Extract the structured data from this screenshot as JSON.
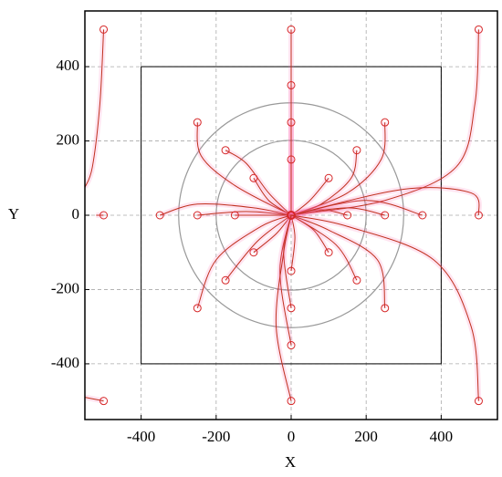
{
  "chart_data": {
    "type": "line",
    "x_label": "X",
    "y_label": "Y",
    "xlim": [
      -550,
      550
    ],
    "ylim": [
      -550,
      550
    ],
    "xticks": [
      -400,
      -200,
      0,
      200,
      400
    ],
    "yticks": [
      -400,
      -200,
      0,
      200,
      400
    ],
    "grid": true,
    "color": "#c0301e",
    "marker_color": "#d62728",
    "square": [
      -400,
      400
    ],
    "circle_radii": [
      200,
      300
    ],
    "series": [
      {
        "x": [
          0,
          0,
          0,
          0
        ],
        "y": [
          500,
          300,
          100,
          0
        ]
      },
      {
        "x": [
          0,
          0
        ],
        "y": [
          350,
          0
        ]
      },
      {
        "x": [
          0,
          0
        ],
        "y": [
          250,
          0
        ]
      },
      {
        "x": [
          0,
          0
        ],
        "y": [
          150,
          0
        ]
      },
      {
        "x": [
          500,
          490,
          440,
          250,
          0
        ],
        "y": [
          500,
          300,
          130,
          40,
          0
        ]
      },
      {
        "x": [
          -500,
          -510,
          -530,
          -550
        ],
        "y": [
          500,
          300,
          130,
          75
        ]
      },
      {
        "x": [
          250,
          240,
          150,
          0
        ],
        "y": [
          250,
          150,
          60,
          0
        ]
      },
      {
        "x": [
          -250,
          -240,
          -150,
          0
        ],
        "y": [
          250,
          160,
          80,
          0
        ]
      },
      {
        "x": [
          175,
          160,
          80,
          0
        ],
        "y": [
          175,
          100,
          30,
          0
        ]
      },
      {
        "x": [
          -175,
          -120,
          -60,
          0
        ],
        "y": [
          175,
          140,
          60,
          0
        ]
      },
      {
        "x": [
          100,
          50,
          0
        ],
        "y": [
          100,
          40,
          0
        ]
      },
      {
        "x": [
          -100,
          -60,
          0
        ],
        "y": [
          100,
          40,
          0
        ]
      },
      {
        "x": [
          -350,
          -250,
          -100,
          0
        ],
        "y": [
          0,
          30,
          20,
          0
        ]
      },
      {
        "x": [
          -250,
          -120,
          0
        ],
        "y": [
          0,
          10,
          0
        ]
      },
      {
        "x": [
          -150,
          0
        ],
        "y": [
          0,
          0
        ]
      },
      {
        "x": [
          150,
          80,
          0
        ],
        "y": [
          0,
          15,
          0
        ]
      },
      {
        "x": [
          250,
          150,
          0
        ],
        "y": [
          0,
          20,
          0
        ]
      },
      {
        "x": [
          350,
          200,
          0
        ],
        "y": [
          0,
          40,
          0
        ]
      },
      {
        "x": [
          500,
          480,
          300,
          0
        ],
        "y": [
          0,
          60,
          70,
          0
        ]
      },
      {
        "x": [
          -500,
          -520
        ],
        "y": [
          0,
          0
        ]
      },
      {
        "x": [
          100,
          60,
          0
        ],
        "y": [
          -100,
          -40,
          0
        ]
      },
      {
        "x": [
          -100,
          -40,
          0
        ],
        "y": [
          -100,
          -50,
          0
        ]
      },
      {
        "x": [
          175,
          120,
          0
        ],
        "y": [
          -175,
          -80,
          0
        ]
      },
      {
        "x": [
          -175,
          -90,
          0
        ],
        "y": [
          -175,
          -70,
          0
        ]
      },
      {
        "x": [
          250,
          230,
          100,
          0
        ],
        "y": [
          -250,
          -120,
          -40,
          0
        ]
      },
      {
        "x": [
          -250,
          -200,
          -80,
          0
        ],
        "y": [
          -250,
          -120,
          -30,
          0
        ]
      },
      {
        "x": [
          0,
          10,
          0
        ],
        "y": [
          -150,
          -60,
          0
        ]
      },
      {
        "x": [
          0,
          -20,
          0
        ],
        "y": [
          -250,
          -100,
          0
        ]
      },
      {
        "x": [
          0,
          -30,
          0
        ],
        "y": [
          -350,
          -150,
          0
        ]
      },
      {
        "x": [
          0,
          -40,
          -20,
          0
        ],
        "y": [
          -500,
          -300,
          -100,
          0
        ]
      },
      {
        "x": [
          500,
          480,
          380,
          150,
          0
        ],
        "y": [
          -500,
          -300,
          -120,
          -30,
          0
        ]
      },
      {
        "x": [
          -500,
          -550
        ],
        "y": [
          -500,
          -490
        ]
      }
    ]
  }
}
